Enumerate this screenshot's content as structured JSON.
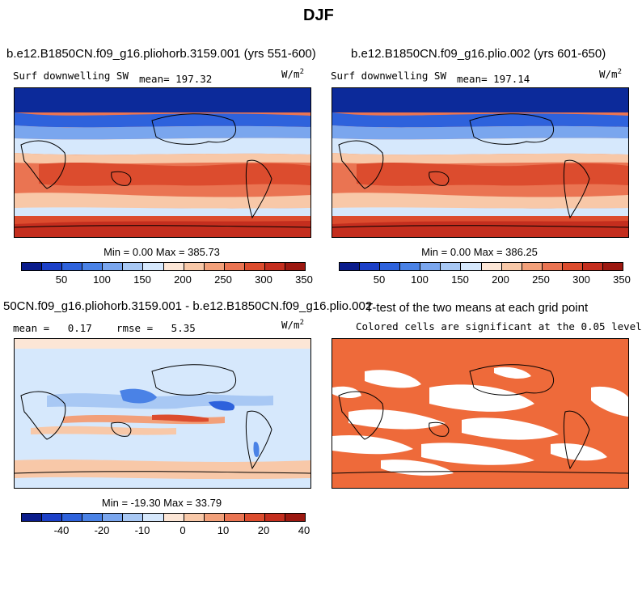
{
  "figure_title": "DJF",
  "panels": {
    "p1": {
      "case_title": "b.e12.B1850CN.f09_g16.pliohorb.3159.001 (yrs 551-600)",
      "left_label": "Surf downwelling SW",
      "mean_label": "mean= 197.32",
      "units": "W/m",
      "units_sup": "2",
      "stats": "Min =   0.00 Max = 385.73"
    },
    "p2": {
      "case_title": "b.e12.B1850CN.f09_g16.plio.002 (yrs 601-650)",
      "left_label": "Surf downwelling SW",
      "mean_label": "mean= 197.14",
      "units": "W/m",
      "units_sup": "2",
      "stats": "Min =   0.00 Max = 386.25"
    },
    "p3": {
      "case_title": "50CN.f09_g16.pliohorb.3159.001 - b.e12.B1850CN.f09_g16.plio.002",
      "left_label": "mean =   0.17    rmse =   5.35",
      "units": "W/m",
      "units_sup": "2",
      "stats": "Min = -19.30 Max =  33.79"
    },
    "p4": {
      "case_title": "T-test of the two means at each grid point",
      "subtitle": "Colored cells are significant at the 0.05 level"
    }
  },
  "colorbar_abs": {
    "colors": [
      "#0a1c8c",
      "#1c40c8",
      "#2e62dc",
      "#4a82e6",
      "#7aa6ee",
      "#a8c8f4",
      "#d6e8fc",
      "#fce6d6",
      "#f8c8a8",
      "#f2a07a",
      "#ea7452",
      "#dc4c2e",
      "#c42e1e",
      "#9c1810"
    ],
    "ticks": [
      "50",
      "100",
      "150",
      "200",
      "250",
      "300",
      "350"
    ]
  },
  "colorbar_diff": {
    "colors": [
      "#0a1c8c",
      "#1c40c8",
      "#2e62dc",
      "#4a82e6",
      "#7aa6ee",
      "#a8c8f4",
      "#d6e8fc",
      "#fce6d6",
      "#f8c8a8",
      "#f2a07a",
      "#ea7452",
      "#dc4c2e",
      "#c42e1e",
      "#9c1810"
    ],
    "ticks": [
      "-40",
      "-20",
      "-10",
      "0",
      "10",
      "20",
      "40"
    ]
  },
  "map_colors": {
    "deep_blue": "#0c2a9a",
    "blue": "#2e62dc",
    "mid_blue": "#7aa6ee",
    "light_blue": "#d6e8fc",
    "light_orange": "#f8c8a8",
    "orange": "#ea7452",
    "red": "#dc4c2e",
    "dark_red": "#c42e1e",
    "significance": "#ee6a3a"
  }
}
